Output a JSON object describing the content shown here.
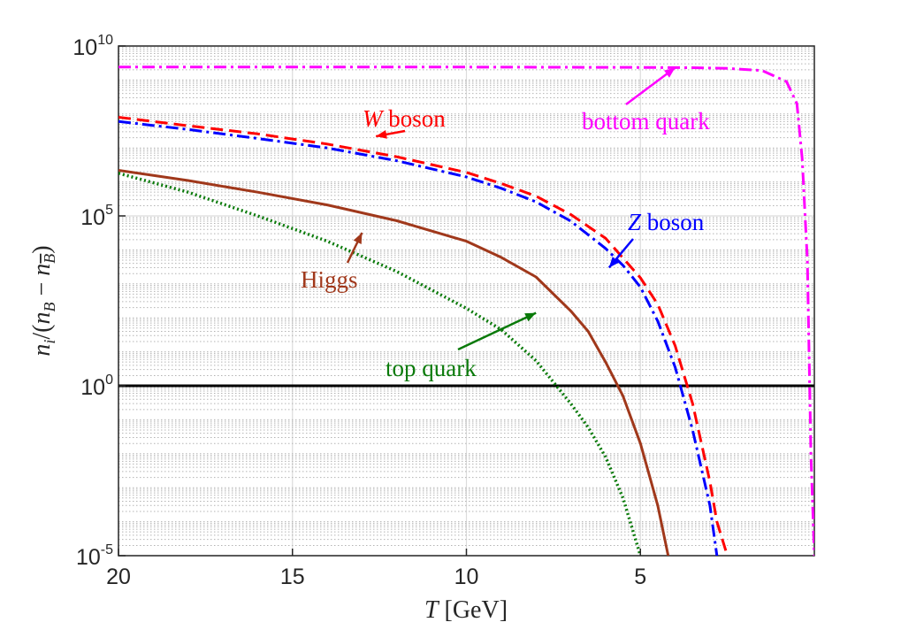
{
  "chart_data": {
    "type": "line",
    "xlabel": "T [GeV]",
    "ylabel": "n_i/(n_B − n_B̄)",
    "xlim": [
      20,
      0
    ],
    "x_reversed": true,
    "ylim": [
      1e-05,
      10000000000.0
    ],
    "yscale": "log",
    "grid": true,
    "xticks": [
      20,
      15,
      10,
      5
    ],
    "yticks": [
      {
        "base": "10",
        "exp": "10",
        "value": 10000000000.0
      },
      {
        "base": "10",
        "exp": "5",
        "value": 100000.0
      },
      {
        "base": "10",
        "exp": "0",
        "value": 1
      },
      {
        "base": "10",
        "exp": "-5",
        "value": 1e-05
      }
    ],
    "reference_line": {
      "y": 1,
      "color": "#000000"
    },
    "series": [
      {
        "name": "bottom quark",
        "color": "#ff00ff",
        "style": "dashdot",
        "x": [
          20,
          15,
          10,
          5,
          3.5,
          2.5,
          1.5,
          0.8,
          0.5,
          0.35,
          0.2,
          0.1,
          0.0
        ],
        "y": [
          2400000000.0,
          2400000000.0,
          2400000000.0,
          2350000000.0,
          2300000000.0,
          2200000000.0,
          1900000000.0,
          900000000.0,
          200000000.0,
          5000000.0,
          5000.0,
          0.01,
          1e-05
        ]
      },
      {
        "name": "W boson",
        "color": "#ff0000",
        "style": "dashed",
        "x": [
          20,
          18,
          16,
          14,
          12,
          10,
          9,
          8,
          7,
          6,
          5,
          4.5,
          4.0,
          3.5,
          3.0,
          2.8,
          2.5
        ],
        "y": [
          80000000.0,
          45000000.0,
          26000000.0,
          13000000.0,
          5500000.0,
          1900000.0,
          900000.0,
          380000.0,
          110000.0,
          22000.0,
          1500.0,
          250.0,
          15,
          0.3,
          0.0015,
          0.0001,
          1e-05
        ]
      },
      {
        "name": "Z boson",
        "color": "#0000ff",
        "style": "dashdot",
        "x": [
          20,
          18,
          16,
          14,
          12,
          10,
          9,
          8,
          7,
          6,
          5.5,
          5,
          4.5,
          4.0,
          3.5,
          3.0,
          2.8
        ],
        "y": [
          60000000.0,
          35000000.0,
          19000000.0,
          10000000.0,
          4200000.0,
          1400000.0,
          650000.0,
          260000.0,
          70000.0,
          11000.0,
          3500.0,
          800.0,
          80,
          3.5,
          0.05,
          0.0003,
          1e-05
        ]
      },
      {
        "name": "Higgs",
        "color": "#a0381b",
        "style": "solid",
        "x": [
          20,
          18,
          16,
          14,
          12,
          10,
          9,
          8,
          7,
          6.5,
          6,
          5.5,
          5,
          4.5,
          4.2
        ],
        "y": [
          2200000.0,
          1100000.0,
          500000.0,
          210000.0,
          72000.0,
          18000.0,
          6000.0,
          1600.0,
          160.0,
          40,
          5,
          0.5,
          0.02,
          0.0003,
          1e-05
        ]
      },
      {
        "name": "top quark",
        "color": "#0a7a0a",
        "style": "dotted",
        "x": [
          20,
          18,
          16,
          14,
          12,
          10,
          9,
          8,
          7,
          6.5,
          6,
          5.5,
          5.0
        ],
        "y": [
          1800000.0,
          500000.0,
          100000.0,
          18000.0,
          2300.0,
          190.0,
          45,
          5.5,
          0.3,
          0.06,
          0.008,
          0.0005,
          1e-05
        ]
      }
    ],
    "annotations": [
      {
        "id": "w",
        "text": "W boson",
        "italic_prefix": "W",
        "rest": " boson",
        "color": "#ff0000",
        "arrow_to": {
          "x": 12.6,
          "y": 22000000.0
        }
      },
      {
        "id": "bottom",
        "text": "bottom quark",
        "color": "#ff00ff",
        "arrow_to": {
          "x": 4.0,
          "y": 2300000000.0
        }
      },
      {
        "id": "z",
        "text": "Z boson",
        "italic_prefix": "Z",
        "rest": " boson",
        "color": "#0000ff",
        "arrow_to": {
          "x": 5.9,
          "y": 3000.0
        }
      },
      {
        "id": "higgs",
        "text": "Higgs",
        "color": "#a0381b",
        "arrow_to": {
          "x": 13.0,
          "y": 32000.0
        }
      },
      {
        "id": "top",
        "text": "top quark",
        "color": "#0a7a0a",
        "arrow_to": {
          "x": 8.0,
          "y": 140.0
        }
      }
    ]
  }
}
